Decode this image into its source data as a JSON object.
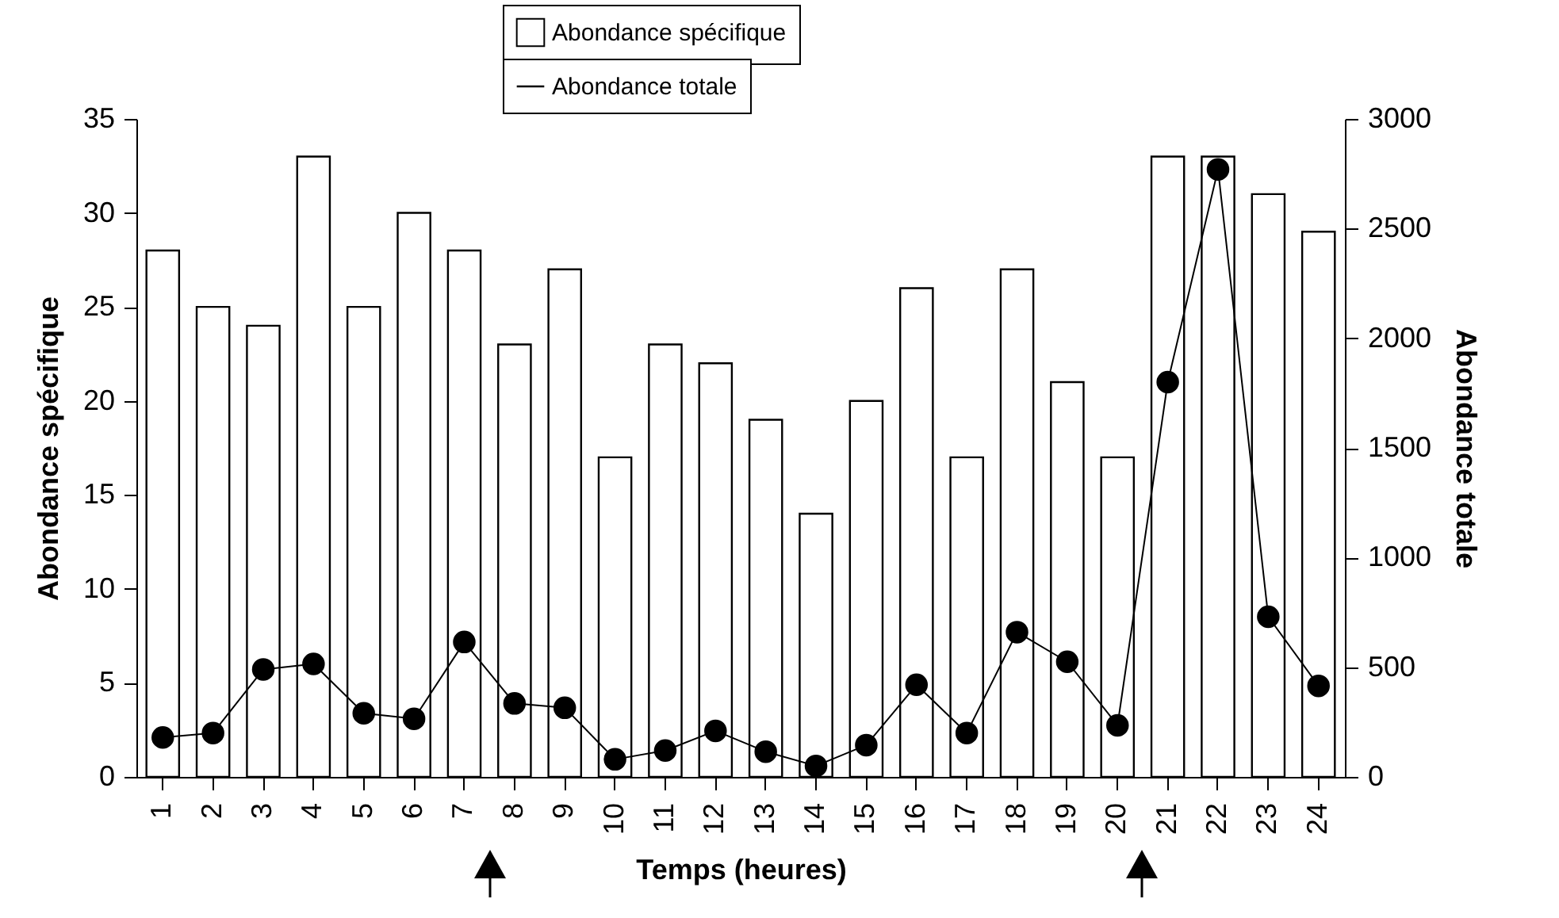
{
  "chart_data": {
    "type": "bar",
    "categories": [
      "1",
      "2",
      "3",
      "4",
      "5",
      "6",
      "7",
      "8",
      "9",
      "10",
      "11",
      "12",
      "13",
      "14",
      "15",
      "16",
      "17",
      "18",
      "19",
      "20",
      "21",
      "22",
      "23",
      "24"
    ],
    "series": [
      {
        "name": "Abondance spécifique",
        "color": "#ffffff",
        "values": [
          28,
          25,
          24,
          33,
          25,
          30,
          28,
          23,
          27,
          17,
          23,
          22,
          19,
          14,
          20,
          26,
          17,
          27,
          21,
          17,
          33,
          33,
          31,
          29
        ]
      },
      {
        "name": "Abondance totale",
        "type": "line",
        "axis": "y2",
        "color": "#000000",
        "values": [
          180,
          200,
          490,
          515,
          290,
          265,
          615,
          335,
          315,
          80,
          120,
          210,
          115,
          50,
          145,
          420,
          200,
          660,
          525,
          235,
          1800,
          2770,
          730,
          415
        ]
      }
    ],
    "xlabel": "Temps (heures)",
    "ylabel": "Abondance spécifique",
    "y2label": "Abondance totale",
    "ylim": [
      0,
      35
    ],
    "yticks": [
      0,
      5,
      10,
      15,
      20,
      25,
      30,
      35
    ],
    "y2lim": [
      0,
      3000
    ],
    "y2ticks": [
      0,
      500,
      1000,
      1500,
      2000,
      2500,
      3000
    ],
    "legend": "top",
    "marker": "circle"
  }
}
